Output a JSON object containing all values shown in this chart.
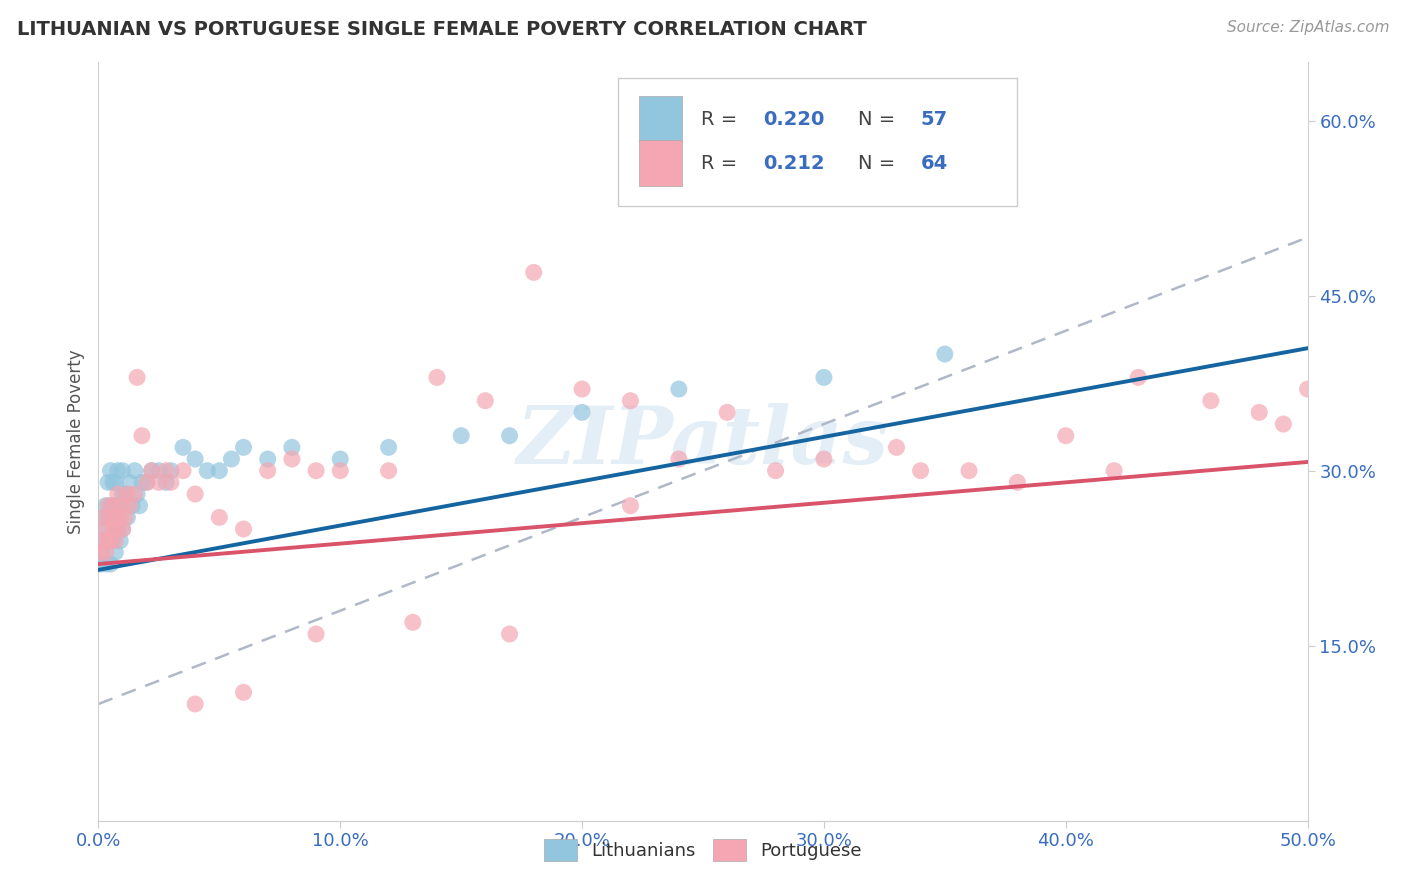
{
  "title": "LITHUANIAN VS PORTUGUESE SINGLE FEMALE POVERTY CORRELATION CHART",
  "source_text": "Source: ZipAtlas.com",
  "ylabel": "Single Female Poverty",
  "xlim": [
    0.0,
    0.5
  ],
  "ylim": [
    0.0,
    0.65
  ],
  "xtick_labels": [
    "0.0%",
    "10.0%",
    "20.0%",
    "30.0%",
    "40.0%",
    "50.0%"
  ],
  "xtick_values": [
    0.0,
    0.1,
    0.2,
    0.3,
    0.4,
    0.5
  ],
  "ytick_labels": [
    "15.0%",
    "30.0%",
    "45.0%",
    "60.0%"
  ],
  "ytick_values": [
    0.15,
    0.3,
    0.45,
    0.6
  ],
  "r1": "0.220",
  "n1": "57",
  "r2": "0.212",
  "n2": "64",
  "color_lith": "#92c5de",
  "color_port": "#f4a7b2",
  "color_lith_line": "#1464a0",
  "color_port_line": "#d9536a",
  "color_dashed": "#b0b8c8",
  "watermark": "ZIPatlas",
  "lith_x": [
    0.001,
    0.001,
    0.002,
    0.002,
    0.003,
    0.003,
    0.003,
    0.004,
    0.004,
    0.004,
    0.005,
    0.005,
    0.005,
    0.005,
    0.006,
    0.006,
    0.006,
    0.007,
    0.007,
    0.007,
    0.008,
    0.008,
    0.008,
    0.009,
    0.009,
    0.01,
    0.01,
    0.01,
    0.011,
    0.012,
    0.013,
    0.014,
    0.015,
    0.016,
    0.017,
    0.018,
    0.02,
    0.022,
    0.025,
    0.028,
    0.03,
    0.035,
    0.04,
    0.045,
    0.05,
    0.055,
    0.06,
    0.07,
    0.08,
    0.1,
    0.12,
    0.15,
    0.17,
    0.2,
    0.24,
    0.3,
    0.35
  ],
  "lith_y": [
    0.23,
    0.22,
    0.24,
    0.26,
    0.22,
    0.25,
    0.27,
    0.24,
    0.26,
    0.29,
    0.22,
    0.24,
    0.27,
    0.3,
    0.24,
    0.27,
    0.29,
    0.23,
    0.26,
    0.29,
    0.25,
    0.27,
    0.3,
    0.24,
    0.27,
    0.25,
    0.28,
    0.3,
    0.28,
    0.26,
    0.29,
    0.27,
    0.3,
    0.28,
    0.27,
    0.29,
    0.29,
    0.3,
    0.3,
    0.29,
    0.3,
    0.32,
    0.31,
    0.3,
    0.3,
    0.31,
    0.32,
    0.31,
    0.32,
    0.31,
    0.32,
    0.33,
    0.33,
    0.35,
    0.37,
    0.38,
    0.4
  ],
  "port_x": [
    0.001,
    0.002,
    0.002,
    0.003,
    0.003,
    0.004,
    0.004,
    0.005,
    0.005,
    0.006,
    0.006,
    0.007,
    0.007,
    0.008,
    0.008,
    0.009,
    0.01,
    0.01,
    0.011,
    0.012,
    0.013,
    0.015,
    0.016,
    0.018,
    0.02,
    0.022,
    0.025,
    0.028,
    0.03,
    0.035,
    0.04,
    0.05,
    0.06,
    0.07,
    0.08,
    0.09,
    0.1,
    0.12,
    0.14,
    0.16,
    0.18,
    0.2,
    0.22,
    0.24,
    0.26,
    0.3,
    0.33,
    0.36,
    0.4,
    0.43,
    0.46,
    0.49,
    0.5,
    0.48,
    0.42,
    0.38,
    0.34,
    0.28,
    0.22,
    0.17,
    0.13,
    0.09,
    0.06,
    0.04
  ],
  "port_y": [
    0.23,
    0.24,
    0.26,
    0.23,
    0.25,
    0.24,
    0.27,
    0.24,
    0.26,
    0.25,
    0.27,
    0.24,
    0.26,
    0.25,
    0.28,
    0.26,
    0.25,
    0.27,
    0.26,
    0.28,
    0.27,
    0.28,
    0.38,
    0.33,
    0.29,
    0.3,
    0.29,
    0.3,
    0.29,
    0.3,
    0.28,
    0.26,
    0.25,
    0.3,
    0.31,
    0.3,
    0.3,
    0.3,
    0.38,
    0.36,
    0.47,
    0.37,
    0.36,
    0.31,
    0.35,
    0.31,
    0.32,
    0.3,
    0.33,
    0.38,
    0.36,
    0.34,
    0.37,
    0.35,
    0.3,
    0.29,
    0.3,
    0.3,
    0.27,
    0.16,
    0.17,
    0.16,
    0.11,
    0.1
  ],
  "lith_intercept": 0.215,
  "lith_slope": 0.38,
  "port_intercept": 0.22,
  "port_slope": 0.175,
  "dash_intercept": 0.1,
  "dash_slope": 0.8
}
